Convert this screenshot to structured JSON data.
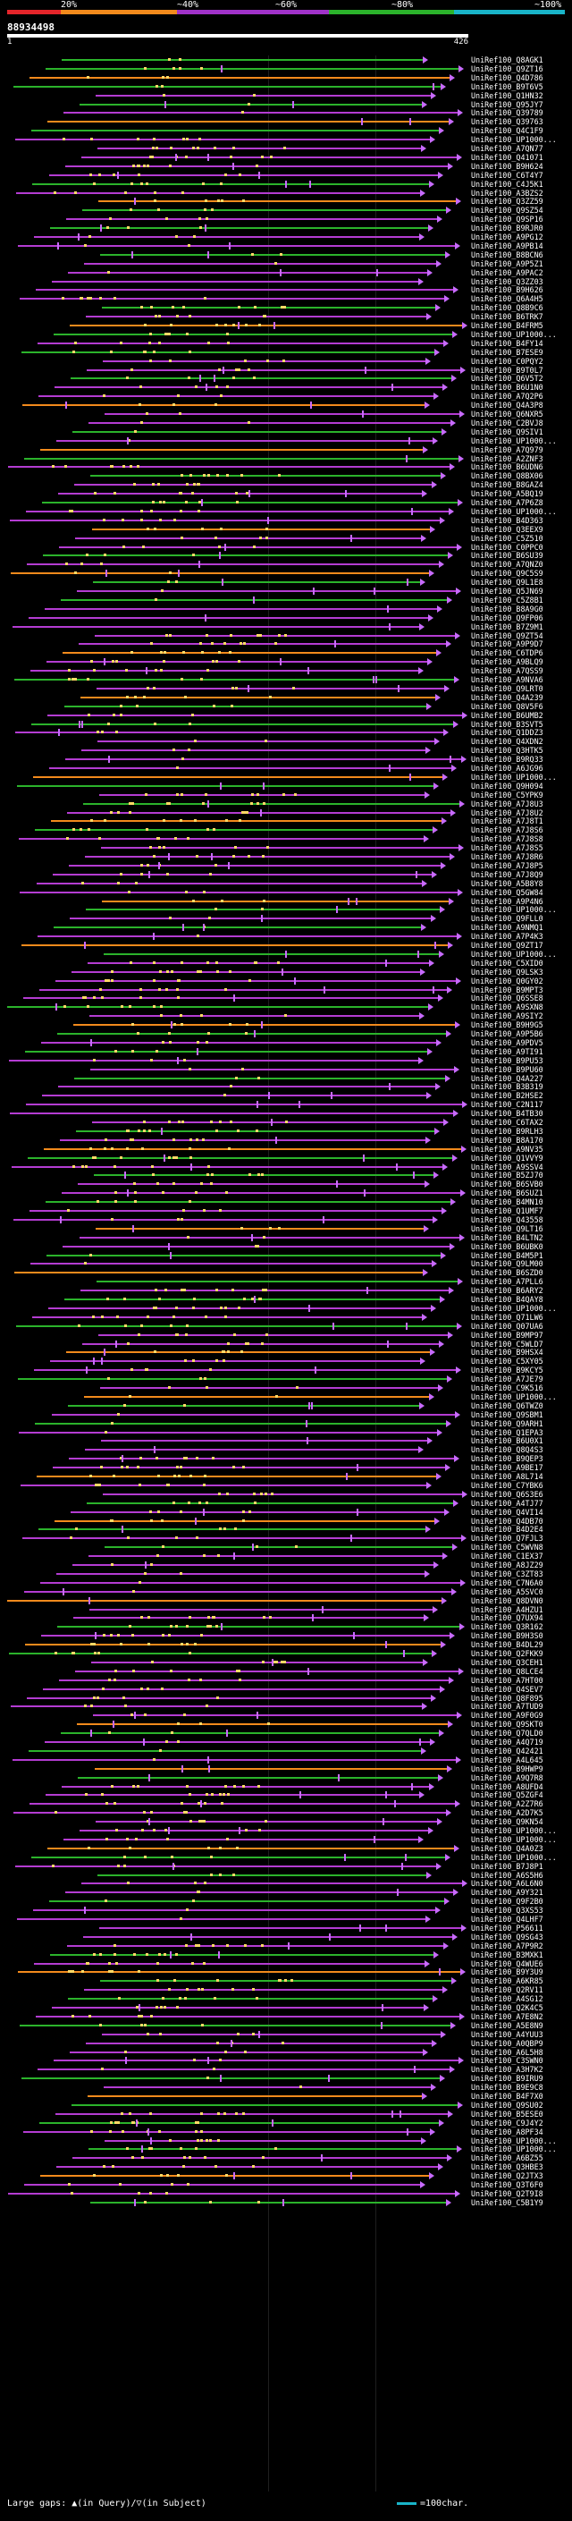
{
  "legend": {
    "segments": [
      {
        "label": "20%",
        "color": "#e4252a"
      },
      {
        "label": "~40%",
        "color": "#f28a1c"
      },
      {
        "label": "~60%",
        "color": "#a032c8"
      },
      {
        "label": "~80%",
        "color": "#2bb32b"
      },
      {
        "label": "~100%",
        "color": "#19b4c8"
      }
    ]
  },
  "query": {
    "title": "88934498",
    "start": "1",
    "end": "426"
  },
  "hits": [
    "UniRef100_Q8AGK1",
    "UniRef100_Q9ZT16",
    "UniRef100_Q4D786",
    "UniRef100_B9T6V5",
    "UniRef100_Q1HN32",
    "UniRef100_Q95JY7",
    "UniRef100_Q39789",
    "UniRef100_Q39763",
    "UniRef100_Q4C1F9",
    "UniRef100_UP1000...",
    "UniRef100_A7QN77",
    "UniRef100_Q41071",
    "UniRef100_B9H624",
    "UniRef100_C6T4Y7",
    "UniRef100_C4J5K1",
    "UniRef100_A3BZS2",
    "UniRef100_Q3ZZ59",
    "UniRef100_Q9SZ54",
    "UniRef100_Q9SP16",
    "UniRef100_B9RJR0",
    "UniRef100_A9PG12",
    "UniRef100_A9PB14",
    "UniRef100_B8BCN6",
    "UniRef100_A9P5Z1",
    "UniRef100_A9PAC2",
    "UniRef100_Q3ZZ03",
    "UniRef100_B9H626",
    "UniRef100_Q6A4H5",
    "UniRef100_Q8B9C6",
    "UniRef100_B6TRK7",
    "UniRef100_B4FRM5",
    "UniRef100_UP1000...",
    "UniRef100_B4FY14",
    "UniRef100_B7ESE9",
    "UniRef100_C0PQY2",
    "UniRef100_B9T0L7",
    "UniRef100_Q6V5T2",
    "UniRef100_B6U1N0",
    "UniRef100_A7Q2P6",
    "UniRef100_Q4A3P8",
    "UniRef100_Q6NXR5",
    "UniRef100_C2BVJ8",
    "UniRef100_Q9SIV1",
    "UniRef100_UP1000...",
    "UniRef100_A7Q979",
    "UniRef100_A2ZNF3",
    "UniRef100_B6UDN6",
    "UniRef100_Q8BX06",
    "UniRef100_B8GAZ4",
    "UniRef100_A5BQ19",
    "UniRef100_A7P6Z8",
    "UniRef100_UP1000...",
    "UniRef100_B4D363",
    "UniRef100_Q3EEX9",
    "UniRef100_C5Z510",
    "UniRef100_C0PPC0",
    "UniRef100_B6SU39",
    "UniRef100_A7QNZ0",
    "UniRef100_Q9C5S9",
    "UniRef100_Q9L1E8",
    "UniRef100_Q5JN69",
    "UniRef100_C5Z8B1",
    "UniRef100_B8A9G0",
    "UniRef100_Q9FP06",
    "UniRef100_B7Z9M1",
    "UniRef100_Q9ZT54",
    "UniRef100_A9P9D7",
    "UniRef100_C6TDP6",
    "UniRef100_A9BLQ9",
    "UniRef100_A7QSS9",
    "UniRef100_A9NVA6",
    "UniRef100_Q9LRT0",
    "UniRef100_Q4A239",
    "UniRef100_Q8V5F6",
    "UniRef100_B6UMB2",
    "UniRef100_B3SVT5",
    "UniRef100_Q1DDZ3",
    "UniRef100_Q4XDN2",
    "UniRef100_Q3HTK5",
    "UniRef100_B9RQ33",
    "UniRef100_A6JG96",
    "UniRef100_UP1000...",
    "UniRef100_Q9H094",
    "UniRef100_C5YPK9",
    "UniRef100_A7J8U3",
    "UniRef100_A7J8U2",
    "UniRef100_A7J8T1",
    "UniRef100_A7J8S6",
    "UniRef100_A7J8S8",
    "UniRef100_A7J8S5",
    "UniRef100_A7J8R6",
    "UniRef100_A7J8P5",
    "UniRef100_A7J8Q9",
    "UniRef100_A5B8Y8",
    "UniRef100_Q5GW84",
    "UniRef100_A9P4N6",
    "UniRef100_UP1000...",
    "UniRef100_Q9FLL0",
    "UniRef100_A9NMQ1",
    "UniRef100_A7P4K3",
    "UniRef100_Q9ZT17",
    "UniRef100_UP1000...",
    "UniRef100_C5XID0",
    "UniRef100_Q9LSK3",
    "UniRef100_Q0GY02",
    "UniRef100_B9MPT3",
    "UniRef100_Q6SSE8",
    "UniRef100_A9SXN8",
    "UniRef100_A9SIY2",
    "UniRef100_B9H9G5",
    "UniRef100_A9P5B6",
    "UniRef100_A9PDV5",
    "UniRef100_A9TI91",
    "UniRef100_B9PU53",
    "UniRef100_B9PU60",
    "UniRef100_Q4A227",
    "UniRef100_B3B319",
    "UniRef100_B2HSE2",
    "UniRef100_C2N117",
    "UniRef100_B4TB30",
    "UniRef100_C6TAX2",
    "UniRef100_B9RLH3",
    "UniRef100_B8A170",
    "UniRef100_A9NV35",
    "UniRef100_Q1VVY9",
    "UniRef100_A9SSV4",
    "UniRef100_B5ZJ70",
    "UniRef100_B6SVB0",
    "UniRef100_B6SUZ1",
    "UniRef100_B4MN10",
    "UniRef100_Q1UMF7",
    "UniRef100_Q43558",
    "UniRef100_Q9LT16",
    "UniRef100_B4LTN2",
    "UniRef100_B6UBK0",
    "UniRef100_B4M5P1",
    "UniRef100_Q9LM00",
    "UniRef100_B6SZD0",
    "UniRef100_A7PLL6",
    "UniRef100_B6ARY2",
    "UniRef100_B4QAY8",
    "UniRef100_UP1000...",
    "UniRef100_Q71LW6",
    "UniRef100_Q07UA6",
    "UniRef100_B9MP97",
    "UniRef100_C5WLD7",
    "UniRef100_B9HSX4",
    "UniRef100_C5XY05",
    "UniRef100_B9KCY5",
    "UniRef100_A7JE79",
    "UniRef100_C9K516",
    "UniRef100_UP1000...",
    "UniRef100_Q6TWZ0",
    "UniRef100_Q9SBM1",
    "UniRef100_Q9ARH1",
    "UniRef100_Q1EPA3",
    "UniRef100_B6U0X1",
    "UniRef100_Q8Q4S3",
    "UniRef100_B9QEP3",
    "UniRef100_A9BE17",
    "UniRef100_A8L714",
    "UniRef100_C7YBK6",
    "UniRef100_Q6S3E6",
    "UniRef100_A4TJ77",
    "UniRef100_Q4VI14",
    "UniRef100_Q4DB70",
    "UniRef100_B4D2E4",
    "UniRef100_Q7FJL3",
    "UniRef100_C5WVN8",
    "UniRef100_C1EX37",
    "UniRef100_A8JZ29",
    "UniRef100_C3ZT83",
    "UniRef100_C7N6A0",
    "UniRef100_A5SVC0",
    "UniRef100_Q8DVN0",
    "UniRef100_A4HZU1",
    "UniRef100_Q7UX94",
    "UniRef100_Q3R162",
    "UniRef100_B9H3S0",
    "UniRef100_B4DL29",
    "UniRef100_Q2FKK9",
    "UniRef100_Q3CEH1",
    "UniRef100_Q8LCE4",
    "UniRef100_A7HT00",
    "UniRef100_Q4SEV7",
    "UniRef100_Q8F895",
    "UniRef100_A7TUD9",
    "UniRef100_A9F0G9",
    "UniRef100_Q9SKT0",
    "UniRef100_Q7QLD0",
    "UniRef100_A4Q719",
    "UniRef100_Q42421",
    "UniRef100_A4L645",
    "UniRef100_B9HWP9",
    "UniRef100_A9Q7R8",
    "UniRef100_A8UFD4",
    "UniRef100_Q5ZGF4",
    "UniRef100_A2Z7R6",
    "UniRef100_A2D7K5",
    "UniRef100_Q9KN54",
    "UniRef100_UP1000...",
    "UniRef100_UP1000...",
    "UniRef100_Q4A0Z3",
    "UniRef100_UP1000...",
    "UniRef100_B7J8P1",
    "UniRef100_A6S5H6",
    "UniRef100_A6L6N0",
    "UniRef100_A9Y321",
    "UniRef100_Q9F2B0",
    "UniRef100_Q3XS53",
    "UniRef100_Q4LHF7",
    "UniRef100_P56611",
    "UniRef100_Q9SG43",
    "UniRef100_A7P9R2",
    "UniRef100_B3MXK1",
    "UniRef100_Q4WUE6",
    "UniRef100_B9Y3U9",
    "UniRef100_A6KR85",
    "UniRef100_Q2RV11",
    "UniRef100_A4SG12",
    "UniRef100_Q2K4C5",
    "UniRef100_A7E8N2",
    "UniRef100_A5E8N9",
    "UniRef100_A4YUU3",
    "UniRef100_A0QBP9",
    "UniRef100_A6L5H8",
    "UniRef100_C3SWN0",
    "UniRef100_A3H7K2",
    "UniRef100_B9IRU9",
    "UniRef100_B9E9C8",
    "UniRef100_B4F7X0",
    "UniRef100_Q9SU02",
    "UniRef100_B5ESE0",
    "UniRef100_C9J4Y2",
    "UniRef100_A8PF34",
    "UniRef100_UP1000...",
    "UniRef100_UP1000...",
    "UniRef100_A6BZ55",
    "UniRef100_Q3HBE3",
    "UniRef100_Q2JTX3",
    "UniRef100_Q3T6F0",
    "UniRef100_Q2T9I8",
    "UniRef100_C5B1Y9"
  ],
  "footer": {
    "gaps_label": "Large gaps: ▲(in Query)/▽(in Subject)",
    "scale_label": "=100char."
  }
}
